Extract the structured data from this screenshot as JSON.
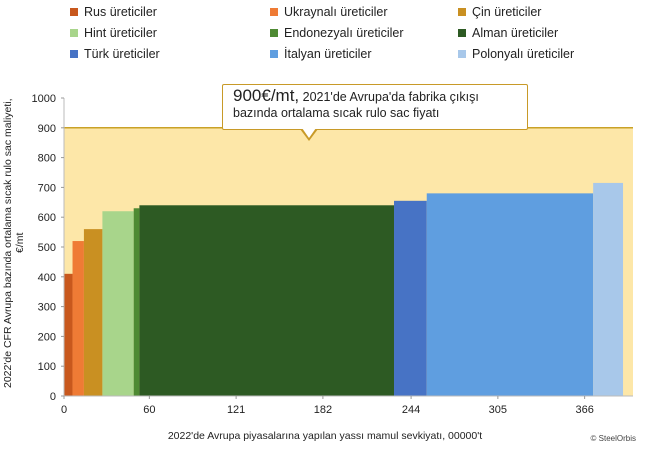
{
  "chart_data": {
    "type": "bar",
    "subtype": "variable-width cost curve",
    "title": "",
    "xlabel": "2022'de Avrupa piyasalarına yapılan yassı mamul sevkiyatı, 00000't",
    "ylabel": "2022'de CFR Avrupa bazında ortalama sıcak rulo sac maliyeti, €/mt",
    "xlim": [
      0,
      400
    ],
    "ylim": [
      0,
      1000
    ],
    "x_ticks": [
      0,
      60,
      121,
      182,
      244,
      305,
      366
    ],
    "y_ticks": [
      0,
      100,
      200,
      300,
      400,
      500,
      600,
      700,
      800,
      900,
      1000
    ],
    "reference_line": {
      "value": 900
    },
    "grid": false,
    "legend_position": "top",
    "series": [
      {
        "name": "Rus üreticiler",
        "color": "#c8581d",
        "x_start": 0,
        "x_end": 6,
        "value": 410
      },
      {
        "name": "Ukraynalı üreticiler",
        "color": "#ef7b35",
        "x_start": 6,
        "x_end": 14,
        "value": 520
      },
      {
        "name": "Çin üreticiler",
        "color": "#c99022",
        "x_start": 14,
        "x_end": 27,
        "value": 560
      },
      {
        "name": "Hint üreticiler",
        "color": "#a8d58b",
        "x_start": 27,
        "x_end": 49,
        "value": 620
      },
      {
        "name": "Endonezyalı üreticiler",
        "color": "#4e8a33",
        "x_start": 49,
        "x_end": 53,
        "value": 630
      },
      {
        "name": "Alman üreticiler",
        "color": "#2d5a23",
        "x_start": 53,
        "x_end": 232,
        "value": 640
      },
      {
        "name": "Türk üreticiler",
        "color": "#4773c5",
        "x_start": 232,
        "x_end": 255,
        "value": 655
      },
      {
        "name": "İtalyan üreticiler",
        "color": "#5f9ee0",
        "x_start": 255,
        "x_end": 372,
        "value": 680
      },
      {
        "name": "Polonyalı üreticiler",
        "color": "#a8c8ea",
        "x_start": 372,
        "x_end": 393,
        "value": 715
      }
    ]
  },
  "callout": {
    "bold_text": "900€/mt,",
    "text_line1": " 2021'de Avrupa'da fabrika çıkışı",
    "text_line2": "bazında ortalama sıcak rulo sac fiyatı"
  },
  "credit": "© SteelOrbis",
  "colors": {
    "band_fill": "#fde7a8",
    "reference_line": "#c9a227"
  }
}
